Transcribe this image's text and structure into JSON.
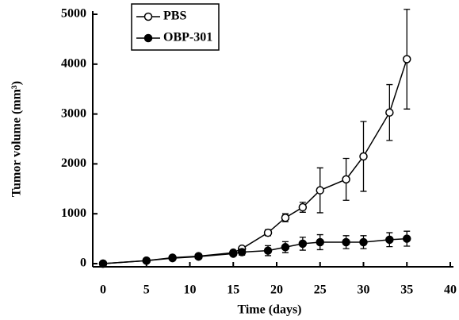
{
  "chart_data": {
    "type": "line",
    "x_label": "Time (days)",
    "y_label": "Tumor volume (mm³)",
    "x": [
      0,
      5,
      8,
      11,
      15,
      16,
      19,
      21,
      23,
      25,
      28,
      30,
      33,
      35
    ],
    "series": [
      {
        "name": "PBS",
        "color": "#000000",
        "marker": "open",
        "values": [
          0,
          60,
          120,
          150,
          220,
          300,
          620,
          920,
          1130,
          1470,
          1690,
          2150,
          3030,
          4100
        ],
        "errors": [
          0,
          10,
          20,
          25,
          30,
          40,
          60,
          80,
          100,
          450,
          420,
          700,
          560,
          1000
        ]
      },
      {
        "name": "OBP-301",
        "color": "#000000",
        "marker": "filled",
        "values": [
          0,
          60,
          110,
          140,
          200,
          230,
          260,
          330,
          400,
          430,
          430,
          430,
          480,
          500
        ],
        "errors": [
          0,
          10,
          20,
          25,
          40,
          60,
          100,
          110,
          130,
          150,
          130,
          130,
          140,
          150
        ]
      }
    ],
    "xlim": [
      0,
      40
    ],
    "xticks": [
      0,
      5,
      10,
      15,
      20,
      25,
      30,
      35,
      40
    ],
    "ylim": [
      0,
      5000
    ],
    "yticks": [
      0,
      1000,
      2000,
      3000,
      4000,
      5000
    ],
    "legend": "upper left"
  }
}
